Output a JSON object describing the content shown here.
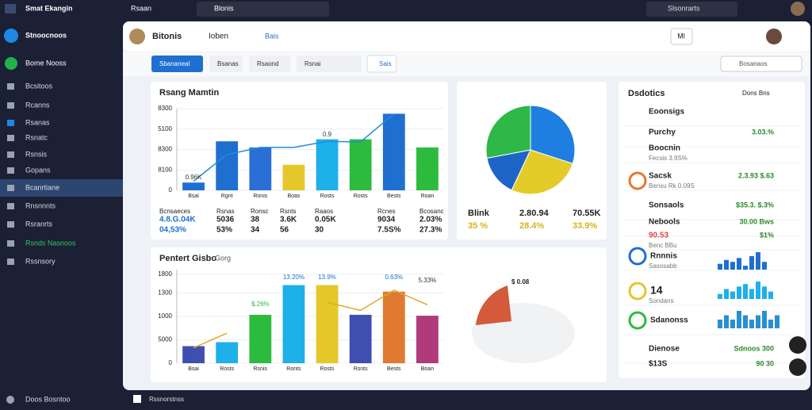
{
  "topbar": {
    "brand": "Smat Ekangin",
    "menu": "Rsaan",
    "tab": "Blonis",
    "search": "Slsonrarts"
  },
  "sidebar": {
    "title": "Stnoocnoos",
    "subtitle": "Bome Nooss",
    "items": [
      "Bcsitoos",
      "Rcanns",
      "Rsanas",
      "Rsnatc",
      "Rsnsis",
      "Gopans",
      "Bcanrtiane",
      "Rnsnnnts",
      "Rsranrts",
      "Rsnds Nasnoos",
      "Rssnsory"
    ],
    "footer": "Doos Bosntoo"
  },
  "header": {
    "title": "Bitonis",
    "tab": "Ioben",
    "link": "Bais",
    "badge": "Ml"
  },
  "toolbar": {
    "tabs": [
      "Sbananeal",
      "Bsanas",
      "Rsaond",
      "Rsnai"
    ],
    "link": "Sais",
    "search": "Bosanaos"
  },
  "footer": {
    "label": "Rssnorstnss"
  },
  "chart_data": [
    {
      "type": "bar",
      "title": "Rsang Mamtin",
      "categories": [
        "Bsai",
        "Rgnt",
        "Ronis",
        "Boas",
        "Rosts",
        "Rosts",
        "Bests",
        "Roan"
      ],
      "values": [
        38,
        240,
        210,
        125,
        250,
        250,
        375,
        210
      ],
      "colors": [
        "#1e6fd0",
        "#1e6fd0",
        "#2a6fd6",
        "#e5c72a",
        "#1eb0e8",
        "#2dbb3e",
        "#1e6fd0",
        "#2dbb3e"
      ],
      "line": {
        "color": "#1e8fd8",
        "values": [
          45,
          175,
          210,
          210,
          240,
          237,
          375,
          null
        ]
      },
      "annotations": [
        "0.96K",
        "0.9"
      ],
      "ylim": [
        0,
        400
      ],
      "yticks": [
        0,
        {
          "value": 100,
          "label": "8100"
        },
        {
          "value": 200,
          "label": "8300"
        },
        {
          "value": 300,
          "label": "5100"
        },
        {
          "value": 400,
          "label": "8300"
        }
      ],
      "grid": true,
      "stats": [
        [
          "Bcnsaeces",
          "4.8.G.04K",
          "04,53%"
        ],
        [
          "Rsnas",
          "5036",
          "53%"
        ],
        [
          "Ronsc",
          "38",
          "34"
        ],
        [
          "Rsnts",
          "3.6K",
          "56"
        ],
        [
          "Raaos",
          "0.05K",
          "30"
        ],
        [
          "Rcnes",
          "9034",
          "7.5S%"
        ],
        [
          "Bcosanc",
          "2.03%",
          "27.3%"
        ]
      ]
    },
    {
      "type": "pie",
      "values": [
        30,
        27,
        15,
        28
      ],
      "colors": [
        "#1e7fe0",
        "#e3cc2a",
        "#1e64c8",
        "#2db847"
      ],
      "stats": [
        [
          "Blink",
          "2.80.94",
          "70.55K"
        ],
        [
          "35 %",
          "28.4%",
          "33.9%"
        ]
      ]
    },
    {
      "type": "bar",
      "title": "Pentert Gisbo",
      "subtitle": "Gorg",
      "categories": [
        "Bsai",
        "Rosts",
        "Rsnis",
        "Ronts",
        "Rosts",
        "Rsnts",
        "Bests",
        "Boan"
      ],
      "values": [
        365,
        450,
        1035,
        1670,
        1670,
        1035,
        1530,
        1015
      ],
      "colors": [
        "#3f4fb0",
        "#1eb0e8",
        "#2dbb3e",
        "#1eb0e8",
        "#e5c72a",
        "#3f4fb0",
        "#e07a30",
        "#b03a7a"
      ],
      "line": {
        "color": "#e5a52a",
        "values": [
          330,
          640,
          null,
          null,
          1300,
          1130,
          1560,
          1250
        ]
      },
      "annotations": [
        "$.26%",
        "13.20%",
        "13.9%",
        "0.63%",
        "5.33%"
      ],
      "ylim": [
        0,
        2000
      ],
      "yticks": [
        0,
        {
          "value": 500,
          "label": "5000"
        },
        1000,
        {
          "value": 1500,
          "label": "1300"
        },
        {
          "value": 1900,
          "label": "1800"
        }
      ],
      "grid": true,
      "badge": "$ 0.08"
    }
  ],
  "panel": {
    "title": "Dsdotics",
    "filter": "Dons Bns",
    "rows": [
      {
        "title": "Eoonsigs"
      },
      {
        "title": "Purchy",
        "value": "3.03.%"
      },
      {
        "title": "Boocnin",
        "sub": "Fecsis 3.9S%"
      },
      {
        "title": "Sacsk",
        "sub": "Bensu Rk 0.09S",
        "value": "2.3.93 $.63"
      },
      {
        "title": "Sonsaols",
        "value": "$35.3. $.3%"
      },
      {
        "title": "Nebools",
        "value": "30.00 Bws"
      },
      {
        "title": "90.53",
        "sub": "Benc BBu",
        "value": "$1%"
      },
      {
        "title": "Rnnnis",
        "sub": "Sasosabb"
      },
      {
        "title": "14",
        "sub": "Sondans"
      },
      {
        "title": "Sdanonss"
      },
      {
        "title": "Dienose",
        "value": "Sdnoos 300"
      },
      {
        "title": "$13S",
        "value": "90 30"
      }
    ],
    "sparks": [
      [
        3,
        5,
        4,
        6,
        2,
        7,
        9,
        4
      ],
      [
        2,
        4,
        3,
        5,
        6,
        4,
        7,
        5,
        3
      ],
      [
        2,
        3,
        2,
        4,
        3,
        2,
        3,
        4,
        2,
        3
      ]
    ]
  }
}
